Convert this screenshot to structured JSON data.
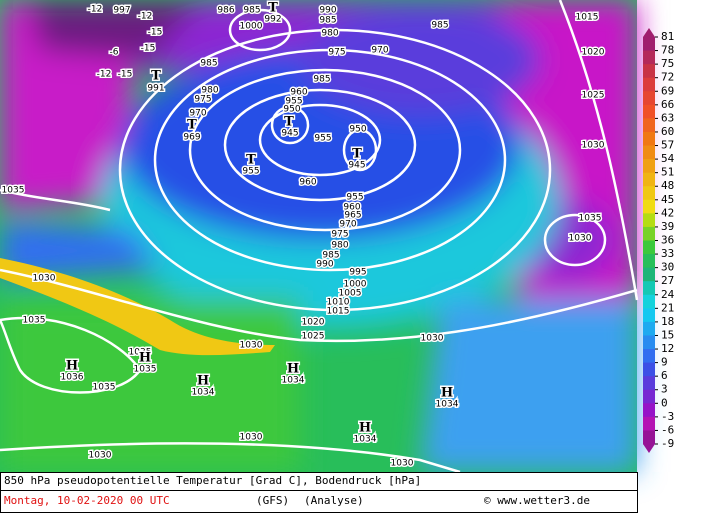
{
  "map": {
    "labels": [
      "997",
      "986",
      "985",
      "T",
      "992",
      "990",
      "985",
      "1000",
      "980",
      "975",
      "970",
      "985",
      "1015",
      "1020",
      "1025",
      "1030",
      "1035",
      "1030",
      "985",
      "T",
      "991",
      "980",
      "975",
      "970",
      "T",
      "969",
      "985",
      "960",
      "955",
      "950",
      "T",
      "945",
      "955",
      "950",
      "T",
      "945",
      "T",
      "955",
      "960",
      "1035",
      "955",
      "960",
      "965",
      "970",
      "975",
      "980",
      "985",
      "990",
      "995",
      "1000",
      "1005",
      "1010",
      "1015",
      "1020",
      "1025",
      "1030",
      "1035",
      "1030",
      "1030",
      "H",
      "1036",
      "1035",
      "H",
      "1035",
      "1035",
      "H",
      "1034",
      "H",
      "1034",
      "H",
      "1034",
      "H",
      "1034",
      "1030",
      "1030",
      "1030",
      "-12",
      "-12",
      "-15",
      "-15",
      "-6",
      "-12",
      "-15"
    ]
  },
  "legend": {
    "ticks": [
      81,
      78,
      75,
      72,
      69,
      66,
      63,
      60,
      57,
      54,
      51,
      48,
      45,
      42,
      39,
      36,
      33,
      30,
      27,
      24,
      21,
      18,
      15,
      12,
      9,
      6,
      3,
      0,
      -3,
      -6,
      -9
    ],
    "colors": [
      "#a01e6e",
      "#b4285a",
      "#c83246",
      "#dc3c3c",
      "#e64632",
      "#f05028",
      "#f0641e",
      "#f07814",
      "#f08c14",
      "#f0a014",
      "#f0b414",
      "#f0c814",
      "#f0dc14",
      "#b4dc14",
      "#78d228",
      "#3cc83c",
      "#28be5a",
      "#1eb478",
      "#14c8b4",
      "#14d2dc",
      "#14c8f0",
      "#1eaaf0",
      "#288cf0",
      "#326ef0",
      "#3c50e6",
      "#5a3cdc",
      "#7828d2",
      "#9614c8",
      "#b414b4",
      "#961496"
    ]
  },
  "footer": {
    "title": "850 hPa pseudopotentielle Temperatur [Grad C], Bodendruck [hPa]",
    "date": "Montag, 10-02-2020  00 UTC",
    "model": "(GFS)",
    "analysis": "(Analyse)",
    "copyright": "© www.wetter3.de"
  }
}
